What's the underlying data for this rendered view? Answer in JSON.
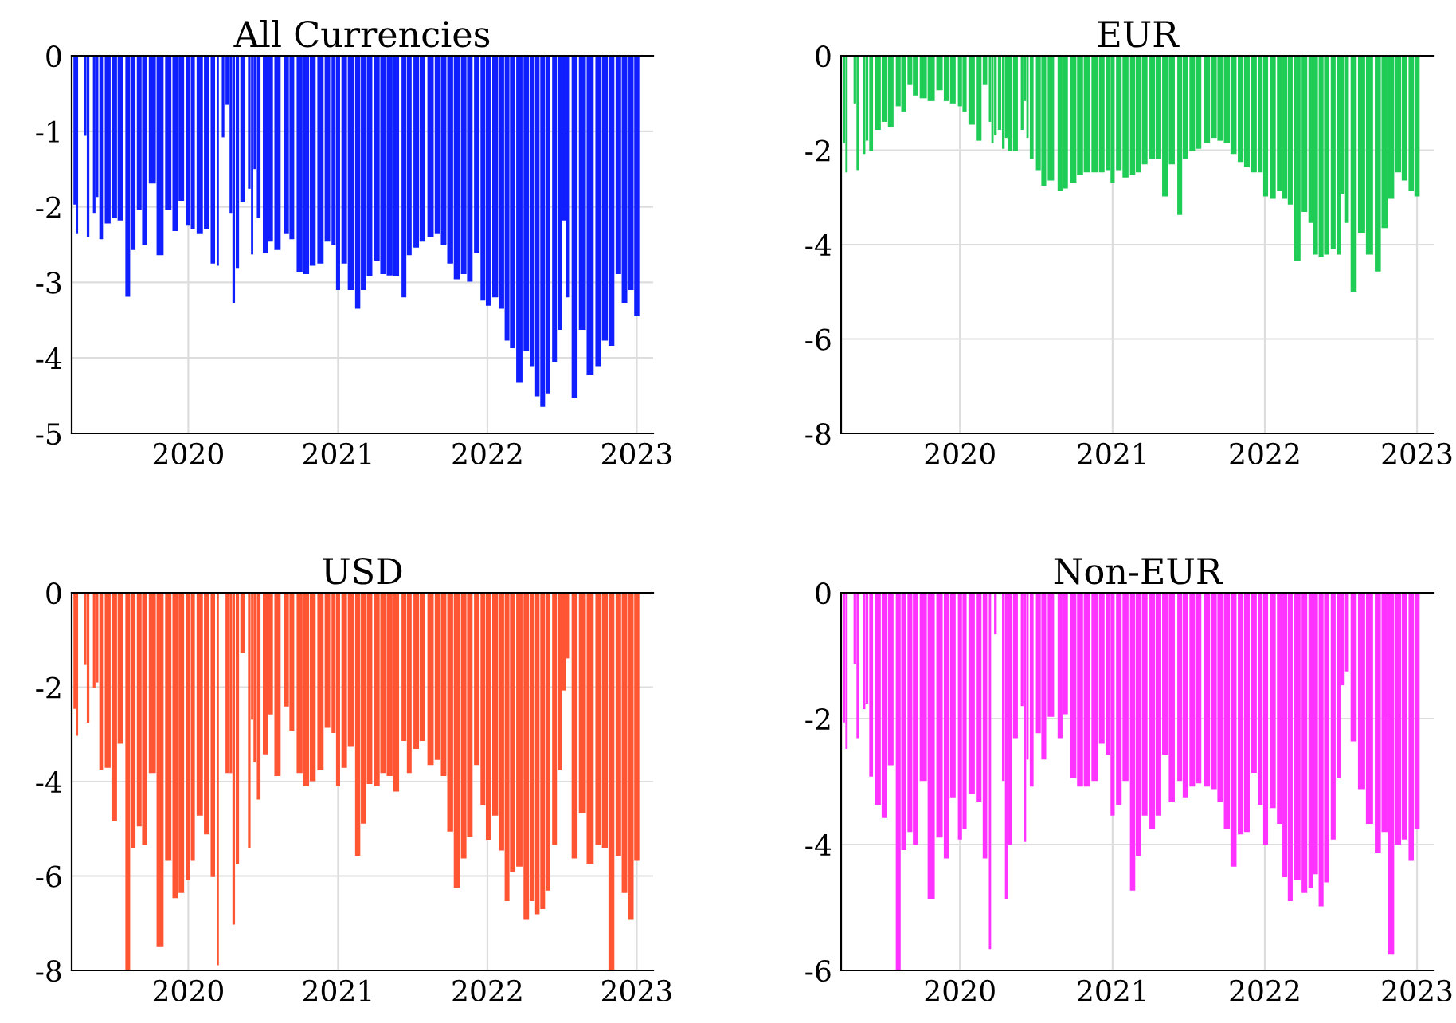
{
  "chart_data": [
    {
      "type": "bar",
      "title": "All Currencies",
      "color": "#0f1fff",
      "grid": true,
      "xlim": [
        "2019-03-22",
        "2023-02-10"
      ],
      "ylim": [
        -5,
        0
      ],
      "xticks": [
        {
          "value": "2020-01-01",
          "label": "2020"
        },
        {
          "value": "2021-01-01",
          "label": "2021"
        },
        {
          "value": "2022-01-01",
          "label": "2022"
        },
        {
          "value": "2023-01-01",
          "label": "2023"
        }
      ],
      "yticks": [
        -5,
        -4,
        -3,
        -2,
        -1,
        0
      ],
      "x": [
        "2019-03-29",
        "2019-04-04",
        "2019-04-24",
        "2019-05-01",
        "2019-05-16",
        "2019-05-23",
        "2019-06-02",
        "2019-06-18",
        "2019-07-04",
        "2019-07-19",
        "2019-08-06",
        "2019-08-19",
        "2019-09-03",
        "2019-09-16",
        "2019-10-05",
        "2019-10-24",
        "2019-11-13",
        "2019-11-30",
        "2019-12-15",
        "2020-01-01",
        "2020-01-12",
        "2020-01-29",
        "2020-02-15",
        "2020-03-01",
        "2020-03-13",
        "2020-03-19",
        "2020-03-26",
        "2020-04-05",
        "2020-04-14",
        "2020-04-21",
        "2020-04-30",
        "2020-05-13",
        "2020-05-29",
        "2020-06-05",
        "2020-06-11",
        "2020-06-21",
        "2020-07-07",
        "2020-07-20",
        "2020-08-06",
        "2020-08-28",
        "2020-09-10",
        "2020-09-29",
        "2020-10-15",
        "2020-10-31",
        "2020-11-19",
        "2020-12-06",
        "2020-12-21",
        "2021-01-01",
        "2021-01-16",
        "2021-02-01",
        "2021-02-18",
        "2021-03-04",
        "2021-03-19",
        "2021-04-06",
        "2021-04-21",
        "2021-05-07",
        "2021-05-23",
        "2021-06-11",
        "2021-06-24",
        "2021-07-11",
        "2021-07-26",
        "2021-08-15",
        "2021-09-01",
        "2021-09-16",
        "2021-10-02",
        "2021-10-18",
        "2021-11-04",
        "2021-11-19",
        "2021-12-06",
        "2021-12-21",
        "2022-01-03",
        "2022-01-20",
        "2022-02-05",
        "2022-02-18",
        "2022-03-03",
        "2022-03-20",
        "2022-04-06",
        "2022-04-21",
        "2022-05-03",
        "2022-05-16",
        "2022-05-29",
        "2022-06-14",
        "2022-06-27",
        "2022-07-07",
        "2022-07-17",
        "2022-08-02",
        "2022-08-21",
        "2022-09-09",
        "2022-09-29",
        "2022-10-15",
        "2022-10-31",
        "2022-11-17",
        "2022-12-02",
        "2022-12-18",
        "2023-01-01"
      ],
      "values": [
        -1.97,
        -2.36,
        -1.06,
        -2.4,
        -2.08,
        -1.87,
        -2.43,
        -2.22,
        -2.15,
        -2.18,
        -3.19,
        -2.57,
        -2.04,
        -2.5,
        -1.69,
        -2.64,
        -2.04,
        -2.32,
        -1.92,
        -2.25,
        -2.29,
        -2.36,
        -2.29,
        -2.75,
        -2.78,
        0,
        -1.08,
        -0.65,
        -2.08,
        -3.27,
        -2.82,
        -1.94,
        -1.76,
        -2.63,
        -1.5,
        -2.15,
        -2.61,
        -2.46,
        -2.57,
        -2.36,
        -2.43,
        -2.87,
        -2.89,
        -2.78,
        -2.75,
        -2.46,
        -2.5,
        -3.1,
        -2.75,
        -3.1,
        -3.35,
        -3.1,
        -2.92,
        -2.71,
        -2.89,
        -2.91,
        -2.92,
        -3.2,
        -2.64,
        -2.54,
        -2.46,
        -2.4,
        -2.36,
        -2.5,
        -2.75,
        -2.96,
        -2.89,
        -2.99,
        -2.61,
        -3.24,
        -3.31,
        -3.2,
        -3.35,
        -3.77,
        -3.87,
        -4.33,
        -3.91,
        -4.12,
        -4.51,
        -4.65,
        -4.47,
        -4.05,
        -3.63,
        -2.18,
        -3.2,
        -4.53,
        -3.63,
        -4.23,
        -4.12,
        -3.77,
        -3.84,
        -2.89,
        -3.27,
        -3.1,
        -3.45
      ]
    },
    {
      "type": "bar",
      "title": "EUR",
      "color": "#1fcc55",
      "grid": true,
      "xlim": [
        "2019-03-22",
        "2023-02-10"
      ],
      "ylim": [
        -8,
        0
      ],
      "xticks": [
        {
          "value": "2020-01-01",
          "label": "2020"
        },
        {
          "value": "2021-01-01",
          "label": "2021"
        },
        {
          "value": "2022-01-01",
          "label": "2022"
        },
        {
          "value": "2023-01-01",
          "label": "2023"
        }
      ],
      "yticks": [
        -8,
        -6,
        -4,
        -2,
        0
      ],
      "x": [
        "2019-03-29",
        "2019-04-04",
        "2019-04-24",
        "2019-05-01",
        "2019-05-16",
        "2019-05-23",
        "2019-06-02",
        "2019-06-18",
        "2019-07-04",
        "2019-07-19",
        "2019-08-06",
        "2019-08-19",
        "2019-09-03",
        "2019-09-16",
        "2019-10-05",
        "2019-10-24",
        "2019-11-13",
        "2019-11-30",
        "2019-12-15",
        "2020-01-01",
        "2020-01-12",
        "2020-01-29",
        "2020-02-15",
        "2020-03-01",
        "2020-03-13",
        "2020-03-19",
        "2020-03-26",
        "2020-04-05",
        "2020-04-14",
        "2020-04-21",
        "2020-04-30",
        "2020-05-13",
        "2020-05-29",
        "2020-06-05",
        "2020-06-11",
        "2020-06-21",
        "2020-07-07",
        "2020-07-20",
        "2020-08-06",
        "2020-08-28",
        "2020-09-10",
        "2020-09-29",
        "2020-10-15",
        "2020-10-31",
        "2020-11-19",
        "2020-12-06",
        "2020-12-21",
        "2021-01-01",
        "2021-01-16",
        "2021-02-01",
        "2021-02-18",
        "2021-03-04",
        "2021-03-19",
        "2021-04-06",
        "2021-04-21",
        "2021-05-07",
        "2021-05-23",
        "2021-06-11",
        "2021-06-24",
        "2021-07-11",
        "2021-07-26",
        "2021-08-15",
        "2021-09-01",
        "2021-09-16",
        "2021-10-02",
        "2021-10-18",
        "2021-11-04",
        "2021-11-19",
        "2021-12-06",
        "2021-12-21",
        "2022-01-03",
        "2022-01-20",
        "2022-02-05",
        "2022-02-18",
        "2022-03-03",
        "2022-03-20",
        "2022-04-06",
        "2022-04-21",
        "2022-05-03",
        "2022-05-16",
        "2022-05-29",
        "2022-06-14",
        "2022-06-27",
        "2022-07-07",
        "2022-07-17",
        "2022-08-02",
        "2022-08-21",
        "2022-09-09",
        "2022-09-29",
        "2022-10-15",
        "2022-10-31",
        "2022-11-17",
        "2022-12-02",
        "2022-12-18",
        "2023-01-01"
      ],
      "values": [
        -1.85,
        -2.47,
        -1.01,
        -2.42,
        -2.08,
        -1.8,
        -2.02,
        -1.57,
        -1.4,
        -1.52,
        -1.07,
        -1.18,
        -0.62,
        -0.84,
        -0.9,
        -0.96,
        -0.73,
        -0.96,
        -1.01,
        -1.07,
        -1.18,
        -1.46,
        -1.8,
        -0.62,
        -1.4,
        -1.85,
        -1.69,
        -1.57,
        -1.97,
        -1.74,
        -2.02,
        -2.02,
        -1.57,
        -0.96,
        -1.74,
        -2.19,
        -2.42,
        -2.75,
        -2.64,
        -2.87,
        -2.81,
        -2.7,
        -2.53,
        -2.47,
        -2.47,
        -2.47,
        -2.42,
        -2.7,
        -2.42,
        -2.58,
        -2.53,
        -2.47,
        -2.3,
        -2.19,
        -2.19,
        -2.98,
        -2.3,
        -3.37,
        -2.19,
        -2.02,
        -1.97,
        -1.85,
        -1.74,
        -1.8,
        -1.85,
        -2.08,
        -2.25,
        -2.36,
        -2.47,
        -2.47,
        -2.98,
        -3.03,
        -2.87,
        -3.03,
        -3.15,
        -4.35,
        -3.31,
        -3.54,
        -4.21,
        -4.27,
        -4.21,
        -4.1,
        -4.21,
        -2.92,
        -3.54,
        -5.0,
        -3.76,
        -4.21,
        -4.57,
        -3.65,
        -3.03,
        -2.47,
        -2.64,
        -2.87,
        -2.98
      ]
    },
    {
      "type": "bar",
      "title": "USD",
      "color": "#ff5533",
      "grid": true,
      "xlim": [
        "2019-03-22",
        "2023-02-10"
      ],
      "ylim": [
        -8,
        0
      ],
      "xticks": [
        {
          "value": "2020-01-01",
          "label": "2020"
        },
        {
          "value": "2021-01-01",
          "label": "2021"
        },
        {
          "value": "2022-01-01",
          "label": "2022"
        },
        {
          "value": "2023-01-01",
          "label": "2023"
        }
      ],
      "yticks": [
        -8,
        -6,
        -4,
        -2,
        0
      ],
      "x": [
        "2019-03-29",
        "2019-04-04",
        "2019-04-24",
        "2019-05-01",
        "2019-05-16",
        "2019-05-23",
        "2019-06-02",
        "2019-06-18",
        "2019-07-04",
        "2019-07-19",
        "2019-08-06",
        "2019-08-19",
        "2019-09-03",
        "2019-09-16",
        "2019-10-05",
        "2019-10-24",
        "2019-11-13",
        "2019-11-30",
        "2019-12-15",
        "2020-01-01",
        "2020-01-12",
        "2020-01-29",
        "2020-02-15",
        "2020-03-01",
        "2020-03-13",
        "2020-03-19",
        "2020-03-26",
        "2020-04-05",
        "2020-04-14",
        "2020-04-21",
        "2020-04-30",
        "2020-05-13",
        "2020-05-29",
        "2020-06-05",
        "2020-06-11",
        "2020-06-21",
        "2020-07-07",
        "2020-07-20",
        "2020-08-06",
        "2020-08-28",
        "2020-09-10",
        "2020-09-29",
        "2020-10-15",
        "2020-10-31",
        "2020-11-19",
        "2020-12-06",
        "2020-12-21",
        "2021-01-01",
        "2021-01-16",
        "2021-02-01",
        "2021-02-18",
        "2021-03-04",
        "2021-03-19",
        "2021-04-06",
        "2021-04-21",
        "2021-05-07",
        "2021-05-23",
        "2021-06-11",
        "2021-06-24",
        "2021-07-11",
        "2021-07-26",
        "2021-08-15",
        "2021-09-01",
        "2021-09-16",
        "2021-10-02",
        "2021-10-18",
        "2021-11-04",
        "2021-11-19",
        "2021-12-06",
        "2021-12-21",
        "2022-01-03",
        "2022-01-20",
        "2022-02-05",
        "2022-02-18",
        "2022-03-03",
        "2022-03-20",
        "2022-04-06",
        "2022-04-21",
        "2022-05-03",
        "2022-05-16",
        "2022-05-29",
        "2022-06-14",
        "2022-06-27",
        "2022-07-07",
        "2022-07-17",
        "2022-08-02",
        "2022-08-21",
        "2022-09-09",
        "2022-09-29",
        "2022-10-15",
        "2022-10-31",
        "2022-11-17",
        "2022-12-02",
        "2022-12-18",
        "2023-01-01"
      ],
      "values": [
        -2.46,
        -3.03,
        -1.53,
        -2.75,
        -2.01,
        -1.9,
        -3.76,
        -3.71,
        -4.84,
        -3.2,
        -8.0,
        -5.4,
        -4.95,
        -5.34,
        -3.82,
        -7.49,
        -5.68,
        -6.47,
        -6.36,
        -6.08,
        -5.68,
        -4.72,
        -5.12,
        -6.02,
        -7.89,
        0,
        0,
        -3.82,
        -3.82,
        -7.03,
        -5.74,
        -1.28,
        -5.4,
        -2.69,
        -3.59,
        -4.38,
        -3.42,
        -2.58,
        -3.88,
        -2.41,
        -2.92,
        -3.82,
        -4.1,
        -3.99,
        -3.76,
        -2.86,
        -2.97,
        -4.1,
        -3.71,
        -3.25,
        -5.57,
        -4.89,
        -4.05,
        -4.1,
        -3.82,
        -3.88,
        -4.21,
        -3.14,
        -3.82,
        -3.31,
        -3.14,
        -3.65,
        -3.54,
        -3.88,
        -5.06,
        -6.25,
        -5.63,
        -5.17,
        -3.65,
        -4.5,
        -5.23,
        -4.72,
        -5.46,
        -6.53,
        -5.91,
        -5.8,
        -6.93,
        -6.53,
        -6.81,
        -6.7,
        -6.31,
        -5.34,
        -3.76,
        -2.07,
        -1.39,
        -5.63,
        -4.67,
        -5.74,
        -5.34,
        -5.4,
        -8.0,
        -5.57,
        -6.36,
        -6.93,
        -5.68
      ]
    },
    {
      "type": "bar",
      "title": "Non-EUR",
      "color": "#ff33ff",
      "grid": true,
      "xlim": [
        "2019-03-22",
        "2023-02-10"
      ],
      "ylim": [
        -6,
        0
      ],
      "xticks": [
        {
          "value": "2020-01-01",
          "label": "2020"
        },
        {
          "value": "2021-01-01",
          "label": "2021"
        },
        {
          "value": "2022-01-01",
          "label": "2022"
        },
        {
          "value": "2023-01-01",
          "label": "2023"
        }
      ],
      "yticks": [
        -6,
        -4,
        -2,
        0
      ],
      "x": [
        "2019-03-29",
        "2019-04-04",
        "2019-04-24",
        "2019-05-01",
        "2019-05-16",
        "2019-05-23",
        "2019-06-02",
        "2019-06-18",
        "2019-07-04",
        "2019-07-19",
        "2019-08-06",
        "2019-08-19",
        "2019-09-03",
        "2019-09-16",
        "2019-10-05",
        "2019-10-24",
        "2019-11-13",
        "2019-11-30",
        "2019-12-15",
        "2020-01-01",
        "2020-01-12",
        "2020-01-29",
        "2020-02-15",
        "2020-03-01",
        "2020-03-13",
        "2020-03-19",
        "2020-03-26",
        "2020-04-05",
        "2020-04-14",
        "2020-04-21",
        "2020-04-30",
        "2020-05-13",
        "2020-05-29",
        "2020-06-05",
        "2020-06-11",
        "2020-06-21",
        "2020-07-07",
        "2020-07-20",
        "2020-08-06",
        "2020-08-28",
        "2020-09-10",
        "2020-09-29",
        "2020-10-15",
        "2020-10-31",
        "2020-11-19",
        "2020-12-06",
        "2020-12-21",
        "2021-01-01",
        "2021-01-16",
        "2021-02-01",
        "2021-02-18",
        "2021-03-04",
        "2021-03-19",
        "2021-04-06",
        "2021-04-21",
        "2021-05-07",
        "2021-05-23",
        "2021-06-11",
        "2021-06-24",
        "2021-07-11",
        "2021-07-26",
        "2021-08-15",
        "2021-09-01",
        "2021-09-16",
        "2021-10-02",
        "2021-10-18",
        "2021-11-04",
        "2021-11-19",
        "2021-12-06",
        "2021-12-21",
        "2022-01-03",
        "2022-01-20",
        "2022-02-05",
        "2022-02-18",
        "2022-03-03",
        "2022-03-20",
        "2022-04-06",
        "2022-04-21",
        "2022-05-03",
        "2022-05-16",
        "2022-05-29",
        "2022-06-14",
        "2022-06-27",
        "2022-07-07",
        "2022-07-17",
        "2022-08-02",
        "2022-08-21",
        "2022-09-09",
        "2022-09-29",
        "2022-10-15",
        "2022-10-31",
        "2022-11-17",
        "2022-12-02",
        "2022-12-18",
        "2023-01-01"
      ],
      "values": [
        -2.06,
        -2.48,
        -1.13,
        -2.31,
        -1.85,
        -1.76,
        -2.92,
        -3.37,
        -3.58,
        -2.74,
        -6.0,
        -4.09,
        -3.8,
        -4.0,
        -2.99,
        -4.86,
        -3.89,
        -4.22,
        -3.25,
        -3.92,
        -3.75,
        -3.2,
        -3.33,
        -4.22,
        -5.66,
        0,
        -0.66,
        0,
        -2.99,
        -4.86,
        -4.0,
        -2.31,
        -1.8,
        -3.96,
        -2.65,
        -3.08,
        -2.23,
        -2.65,
        -1.97,
        -2.31,
        -1.93,
        -2.95,
        -3.08,
        -3.08,
        -2.99,
        -2.4,
        -2.57,
        -3.54,
        -3.37,
        -2.99,
        -4.73,
        -4.18,
        -3.54,
        -3.75,
        -3.54,
        -2.57,
        -3.33,
        -2.99,
        -3.25,
        -3.08,
        -3.03,
        -3.08,
        -3.12,
        -3.33,
        -3.75,
        -4.35,
        -3.84,
        -3.8,
        -2.86,
        -3.37,
        -4.0,
        -3.42,
        -3.67,
        -4.52,
        -4.9,
        -4.56,
        -4.77,
        -4.69,
        -4.47,
        -4.98,
        -4.6,
        -3.92,
        -2.95,
        -1.47,
        -1.25,
        -2.36,
        -3.12,
        -3.67,
        -4.14,
        -3.8,
        -5.75,
        -4.0,
        -3.92,
        -4.26,
        -3.75
      ]
    }
  ]
}
